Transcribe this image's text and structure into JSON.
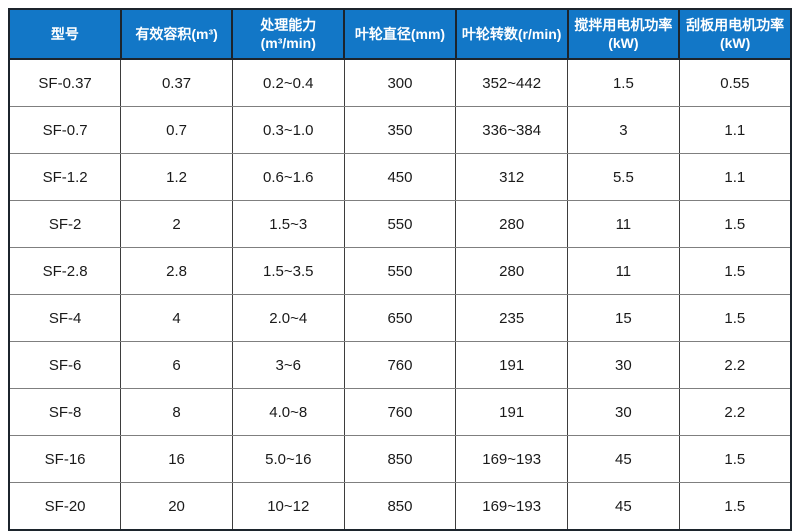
{
  "colors": {
    "header_background": "#1277c7",
    "header_text": "#ffffff",
    "cell_text": "#1a1a1a",
    "outer_border": "#1c242c",
    "inner_border": "#7f7f7f",
    "page_background": "#ffffff"
  },
  "table": {
    "columns": [
      {
        "key": "model",
        "label": "型号"
      },
      {
        "key": "effective-volume",
        "label": "有效容积(m³)"
      },
      {
        "key": "processing-capacity",
        "label": "处理能力\n(m³/min)"
      },
      {
        "key": "impeller-diameter",
        "label": "叶轮直径(mm)"
      },
      {
        "key": "impeller-speed",
        "label": "叶轮转数(r/min)"
      },
      {
        "key": "agitation-motor-power",
        "label": "搅拌用电机功率\n(kW)"
      },
      {
        "key": "scraper-motor-power",
        "label": "刮板用电机功率\n(kW)"
      }
    ],
    "rows": [
      [
        "SF-0.37",
        "0.37",
        "0.2~0.4",
        "300",
        "352~442",
        "1.5",
        "0.55"
      ],
      [
        "SF-0.7",
        "0.7",
        "0.3~1.0",
        "350",
        "336~384",
        "3",
        "1.1"
      ],
      [
        "SF-1.2",
        "1.2",
        "0.6~1.6",
        "450",
        "312",
        "5.5",
        "1.1"
      ],
      [
        "SF-2",
        "2",
        "1.5~3",
        "550",
        "280",
        "11",
        "1.5"
      ],
      [
        "SF-2.8",
        "2.8",
        "1.5~3.5",
        "550",
        "280",
        "11",
        "1.5"
      ],
      [
        "SF-4",
        "4",
        "2.0~4",
        "650",
        "235",
        "15",
        "1.5"
      ],
      [
        "SF-6",
        "6",
        "3~6",
        "760",
        "191",
        "30",
        "2.2"
      ],
      [
        "SF-8",
        "8",
        "4.0~8",
        "760",
        "191",
        "30",
        "2.2"
      ],
      [
        "SF-16",
        "16",
        "5.0~16",
        "850",
        "169~193",
        "45",
        "1.5"
      ],
      [
        "SF-20",
        "20",
        "10~12",
        "850",
        "169~193",
        "45",
        "1.5"
      ]
    ]
  }
}
